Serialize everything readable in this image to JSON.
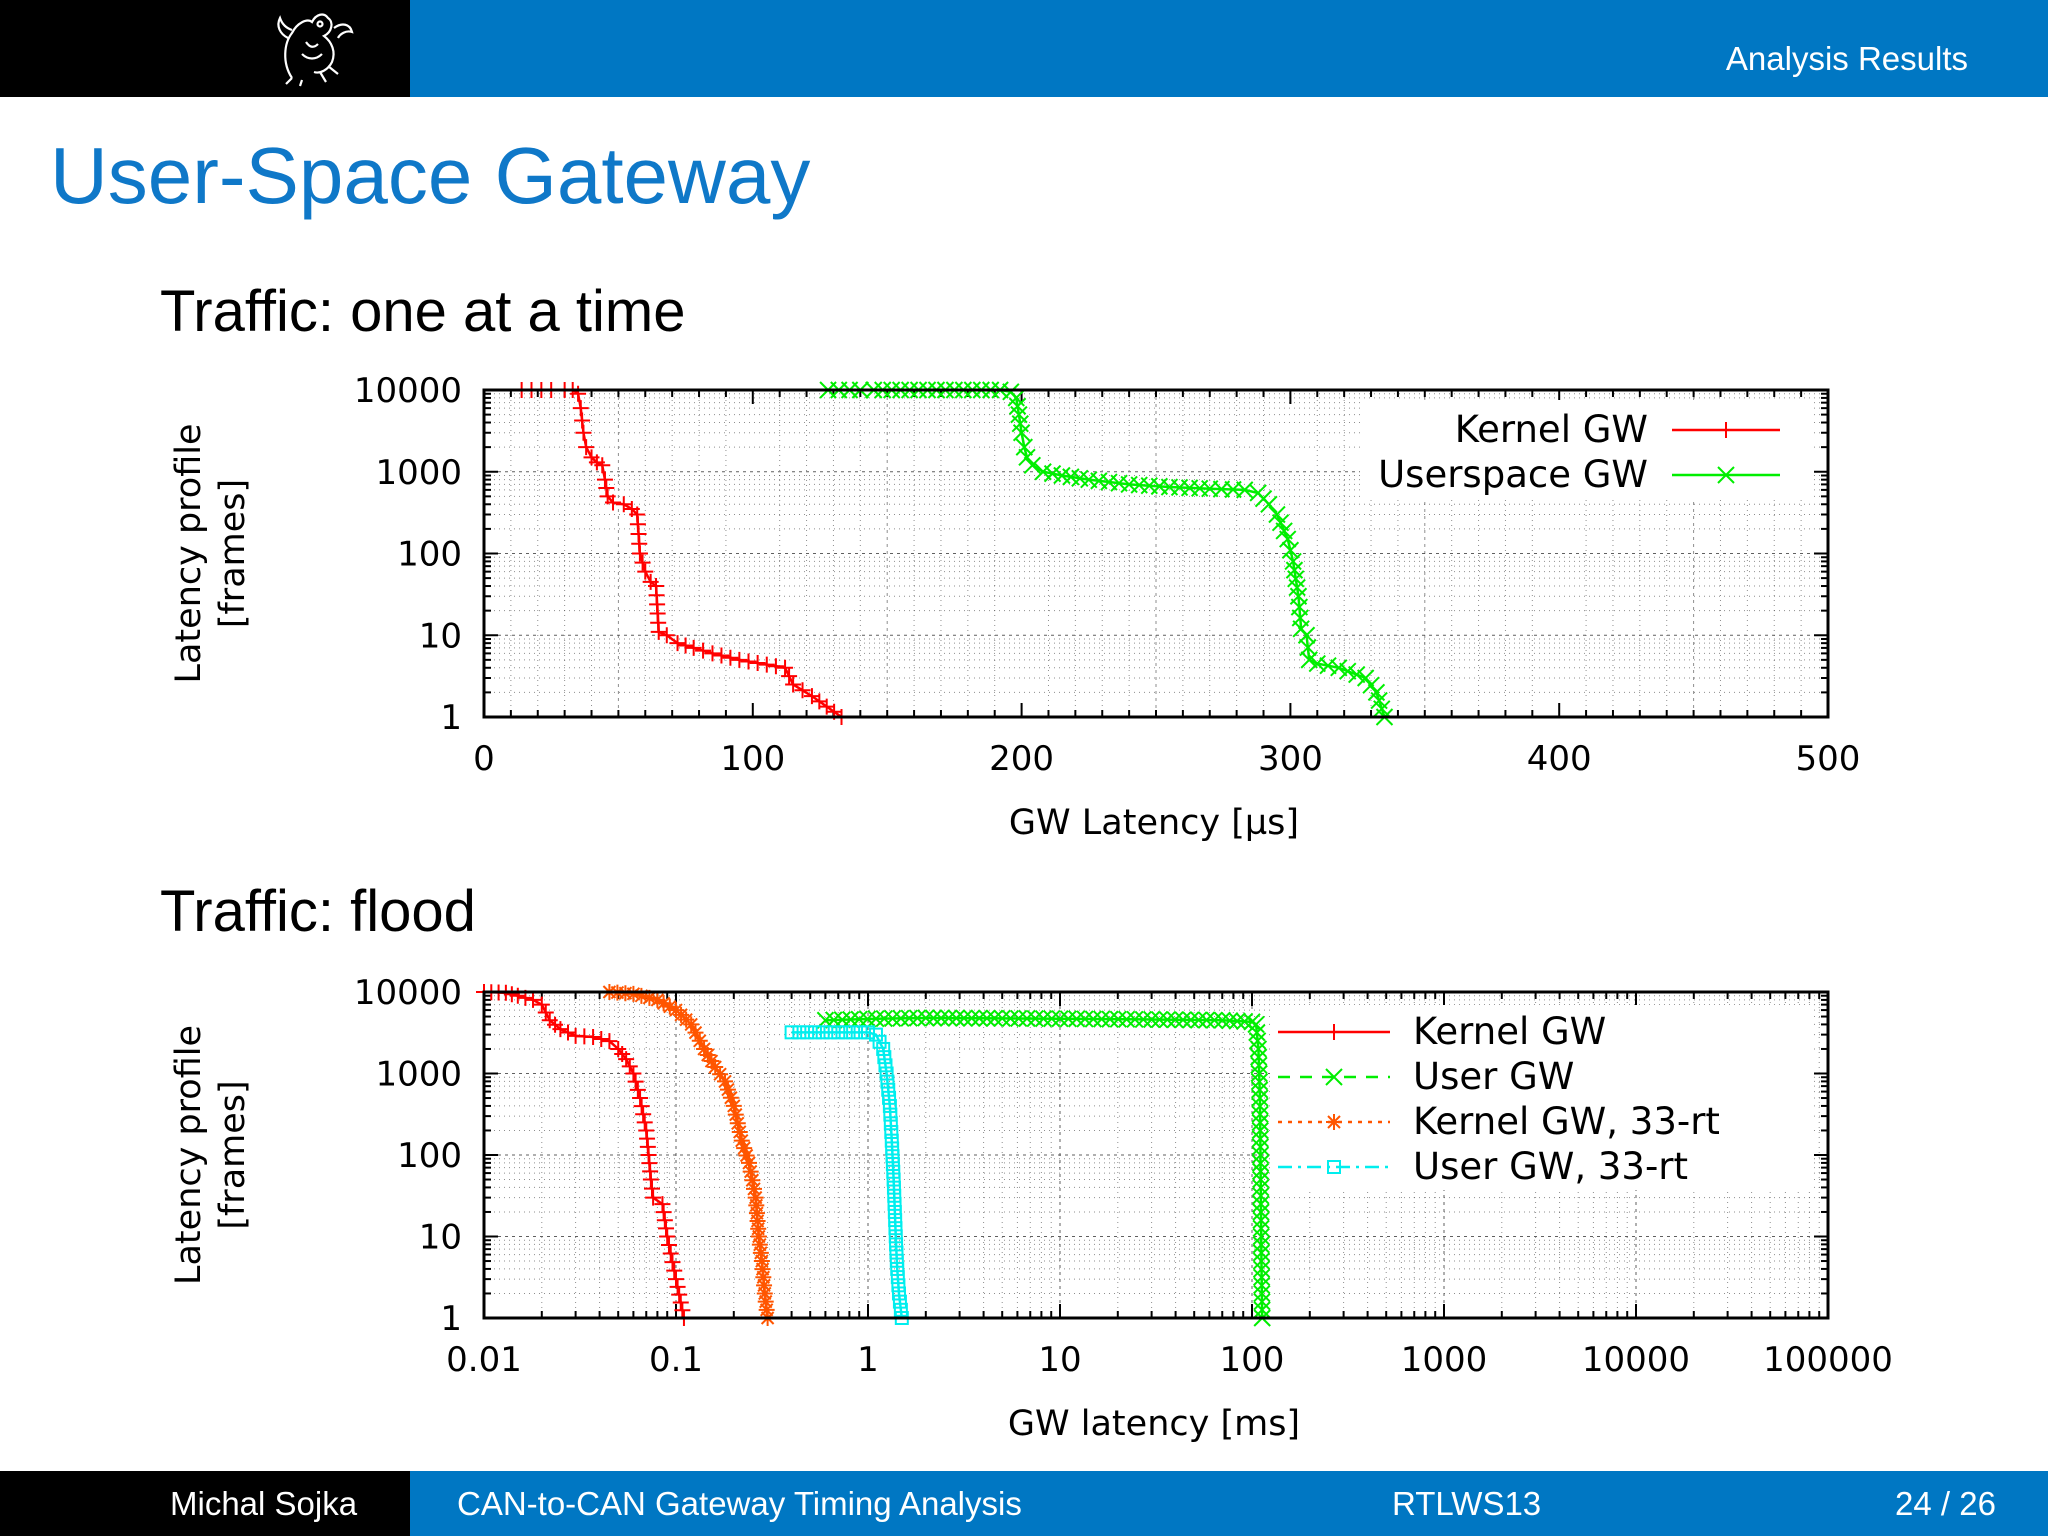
{
  "header": {
    "section": "Analysis Results"
  },
  "slide": {
    "title": "User-Space Gateway"
  },
  "sections": {
    "one": "Traffic: one at a time",
    "two": "Traffic: flood"
  },
  "footer": {
    "author": "Michal Sojka",
    "talk": "CAN-to-CAN Gateway Timing Analysis",
    "venue": "RTLWS13",
    "page": "24 / 26"
  },
  "colors": {
    "kernel": "#ff0000",
    "user": "#00ee00",
    "kernel_rt": "#ff5500",
    "user_rt": "#00eeee",
    "accent": "#0077c3"
  },
  "chart_data": [
    {
      "type": "line",
      "xlabel": "GW Latency [µs]",
      "ylabel": "Latency profile\n[frames]",
      "xscale": "linear",
      "yscale": "log",
      "xlim": [
        0,
        500
      ],
      "ylim": [
        1,
        10000
      ],
      "xticks": [
        0,
        100,
        200,
        300,
        400,
        500
      ],
      "xtick_labels": [
        "0",
        "100",
        "200",
        "300",
        "400",
        "500"
      ],
      "yticks": [
        1,
        10,
        100,
        1000,
        10000
      ],
      "ytick_labels": [
        "1",
        "10",
        "100",
        "1000",
        "10000"
      ],
      "grid": true,
      "legend": "top-right",
      "series": [
        {
          "name": "Kernel GW",
          "color": "#ff0000",
          "marker": "plus",
          "points": [
            [
              14,
              10000
            ],
            [
              25,
              10000
            ],
            [
              30,
              10000
            ],
            [
              33,
              10000
            ],
            [
              35,
              9000
            ],
            [
              36,
              6000
            ],
            [
              37,
              3000
            ],
            [
              38,
              2000
            ],
            [
              40,
              1500
            ],
            [
              42,
              1300
            ],
            [
              44,
              1200
            ],
            [
              45,
              800
            ],
            [
              46,
              500
            ],
            [
              48,
              420
            ],
            [
              52,
              400
            ],
            [
              55,
              350
            ],
            [
              57,
              300
            ],
            [
              58,
              100
            ],
            [
              60,
              60
            ],
            [
              62,
              45
            ],
            [
              64,
              40
            ],
            [
              65,
              11
            ],
            [
              68,
              10
            ],
            [
              72,
              8
            ],
            [
              78,
              7
            ],
            [
              85,
              6
            ],
            [
              95,
              5
            ],
            [
              112,
              4
            ],
            [
              115,
              2.5
            ],
            [
              122,
              1.8
            ],
            [
              133,
              1
            ]
          ]
        },
        {
          "name": "Userspace GW",
          "color": "#00ee00",
          "marker": "x",
          "points": [
            [
              128,
              10000
            ],
            [
              140,
              10000
            ],
            [
              145,
              10000
            ],
            [
              155,
              10000
            ],
            [
              165,
              10000
            ],
            [
              175,
              10000
            ],
            [
              185,
              10000
            ],
            [
              192,
              10000
            ],
            [
              196,
              9500
            ],
            [
              198,
              8000
            ],
            [
              199,
              5000
            ],
            [
              200,
              3000
            ],
            [
              201,
              2000
            ],
            [
              202,
              1500
            ],
            [
              204,
              1200
            ],
            [
              208,
              1000
            ],
            [
              215,
              900
            ],
            [
              225,
              800
            ],
            [
              240,
              700
            ],
            [
              255,
              650
            ],
            [
              270,
              620
            ],
            [
              283,
              600
            ],
            [
              288,
              550
            ],
            [
              292,
              400
            ],
            [
              295,
              300
            ],
            [
              299,
              150
            ],
            [
              301,
              80
            ],
            [
              303,
              30
            ],
            [
              304,
              12
            ],
            [
              306,
              10
            ],
            [
              307,
              5
            ],
            [
              310,
              4.5
            ],
            [
              318,
              4
            ],
            [
              328,
              3
            ],
            [
              332,
              2
            ],
            [
              335,
              1
            ]
          ]
        }
      ]
    },
    {
      "type": "line",
      "xlabel": "GW latency [ms]",
      "ylabel": "Latency profile\n[frames]",
      "xscale": "log",
      "yscale": "log",
      "xlim": [
        0.01,
        100000
      ],
      "ylim": [
        1,
        10000
      ],
      "xticks": [
        0.01,
        0.1,
        1,
        10,
        100,
        1000,
        10000,
        100000
      ],
      "xtick_labels": [
        "0.01",
        "0.1",
        "1",
        "10",
        "100",
        "1000",
        "10000",
        "100000"
      ],
      "yticks": [
        1,
        10,
        100,
        1000,
        10000
      ],
      "ytick_labels": [
        "1",
        "10",
        "100",
        "1000",
        "10000"
      ],
      "grid": true,
      "legend": "top-right",
      "series": [
        {
          "name": "Kernel GW",
          "color": "#ff0000",
          "marker": "plus",
          "points": [
            [
              0.01,
              10000
            ],
            [
              0.013,
              9800
            ],
            [
              0.015,
              9000
            ],
            [
              0.018,
              8000
            ],
            [
              0.02,
              7000
            ],
            [
              0.022,
              4500
            ],
            [
              0.025,
              3500
            ],
            [
              0.03,
              2900
            ],
            [
              0.037,
              2800
            ],
            [
              0.045,
              2500
            ],
            [
              0.05,
              2000
            ],
            [
              0.055,
              1500
            ],
            [
              0.06,
              1000
            ],
            [
              0.065,
              500
            ],
            [
              0.07,
              200
            ],
            [
              0.072,
              100
            ],
            [
              0.074,
              50
            ],
            [
              0.076,
              30
            ],
            [
              0.085,
              25
            ],
            [
              0.09,
              10
            ],
            [
              0.1,
              3
            ],
            [
              0.11,
              1
            ]
          ]
        },
        {
          "name": "User GW",
          "color": "#00ee00",
          "marker": "x",
          "points": [
            [
              0.6,
              4500
            ],
            [
              1.1,
              4700
            ],
            [
              2,
              4800
            ],
            [
              5,
              4750
            ],
            [
              10,
              4700
            ],
            [
              30,
              4600
            ],
            [
              70,
              4500
            ],
            [
              100,
              4300
            ],
            [
              105,
              4000
            ],
            [
              108,
              2000
            ],
            [
              110,
              500
            ],
            [
              111,
              50
            ],
            [
              112,
              5
            ],
            [
              113,
              1
            ]
          ]
        },
        {
          "name": "Kernel GW, 33-rt",
          "color": "#ff5500",
          "marker": "star",
          "points": [
            [
              0.045,
              10000
            ],
            [
              0.06,
              9500
            ],
            [
              0.08,
              8000
            ],
            [
              0.1,
              6000
            ],
            [
              0.12,
              4000
            ],
            [
              0.14,
              2000
            ],
            [
              0.16,
              1200
            ],
            [
              0.18,
              800
            ],
            [
              0.2,
              400
            ],
            [
              0.22,
              150
            ],
            [
              0.24,
              80
            ],
            [
              0.26,
              30
            ],
            [
              0.27,
              10
            ],
            [
              0.28,
              5
            ],
            [
              0.29,
              2
            ],
            [
              0.3,
              1
            ]
          ]
        },
        {
          "name": "User GW, 33-rt",
          "color": "#00eeee",
          "marker": "square",
          "points": [
            [
              0.4,
              3200
            ],
            [
              0.7,
              3200
            ],
            [
              1,
              3200
            ],
            [
              1.1,
              3000
            ],
            [
              1.2,
              2000
            ],
            [
              1.25,
              1000
            ],
            [
              1.3,
              400
            ],
            [
              1.33,
              150
            ],
            [
              1.36,
              50
            ],
            [
              1.38,
              20
            ],
            [
              1.4,
              8
            ],
            [
              1.42,
              4
            ],
            [
              1.45,
              2
            ],
            [
              1.5,
              1
            ]
          ]
        }
      ]
    }
  ]
}
